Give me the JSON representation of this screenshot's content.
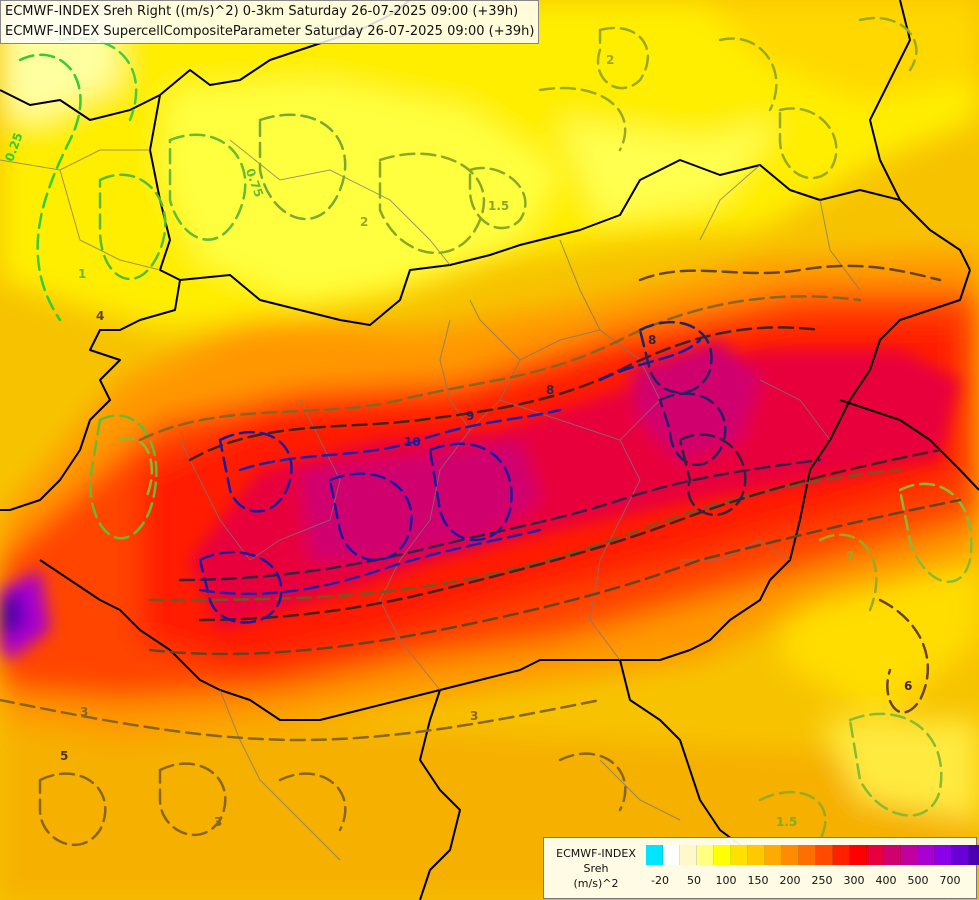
{
  "title_lines": [
    "ECMWF-INDEX Sreh Right ((m/s)^2) 0-3km Saturday 26-07-2025 09:00 (+39h)",
    "ECMWF-INDEX SupercellCompositeParameter Saturday 26-07-2025 09:00 (+39h)"
  ],
  "legend": {
    "name_lines": [
      "ECMWF-INDEX",
      "Sreh",
      "(m/s)^2"
    ],
    "colors": [
      "#00e5ff",
      "#ffffff",
      "#fff8c8",
      "#ffff80",
      "#ffff00",
      "#ffe000",
      "#ffc800",
      "#ffaa00",
      "#ff8c00",
      "#ff6e00",
      "#ff4a00",
      "#ff2000",
      "#ff0000",
      "#e8003c",
      "#d0006e",
      "#c000a0",
      "#a800d0",
      "#8a00e8",
      "#6a00d8",
      "#4a00b0",
      "#2a0090"
    ],
    "tick_labels": [
      "-20",
      "50",
      "100",
      "150",
      "200",
      "250",
      "300",
      "400",
      "500",
      "700"
    ]
  },
  "contour_labels": [
    {
      "text": "0.25",
      "color": "#33cc33"
    },
    {
      "text": "0.75",
      "color": "#66bb33"
    },
    {
      "text": "1.5",
      "color": "#88aa22"
    },
    {
      "text": "1",
      "color": "#66bb33"
    },
    {
      "text": "2",
      "color": "#99aa22"
    },
    {
      "text": "3",
      "color": "#886622"
    },
    {
      "text": "4",
      "color": "#664422"
    },
    {
      "text": "5",
      "color": "#553322"
    },
    {
      "text": "6",
      "color": "#442222"
    },
    {
      "text": "8",
      "color": "#332244"
    },
    {
      "text": "9",
      "color": "#222266"
    },
    {
      "text": "10",
      "color": "#1a1aa0"
    },
    {
      "text": "3",
      "color": "#886622"
    },
    {
      "text": "2",
      "color": "#99aa22"
    },
    {
      "text": "3",
      "color": "#886622"
    },
    {
      "text": "1.5",
      "color": "#88aa22"
    },
    {
      "text": "8",
      "color": "#332244"
    },
    {
      "text": "2",
      "color": "#99aa22"
    }
  ]
}
